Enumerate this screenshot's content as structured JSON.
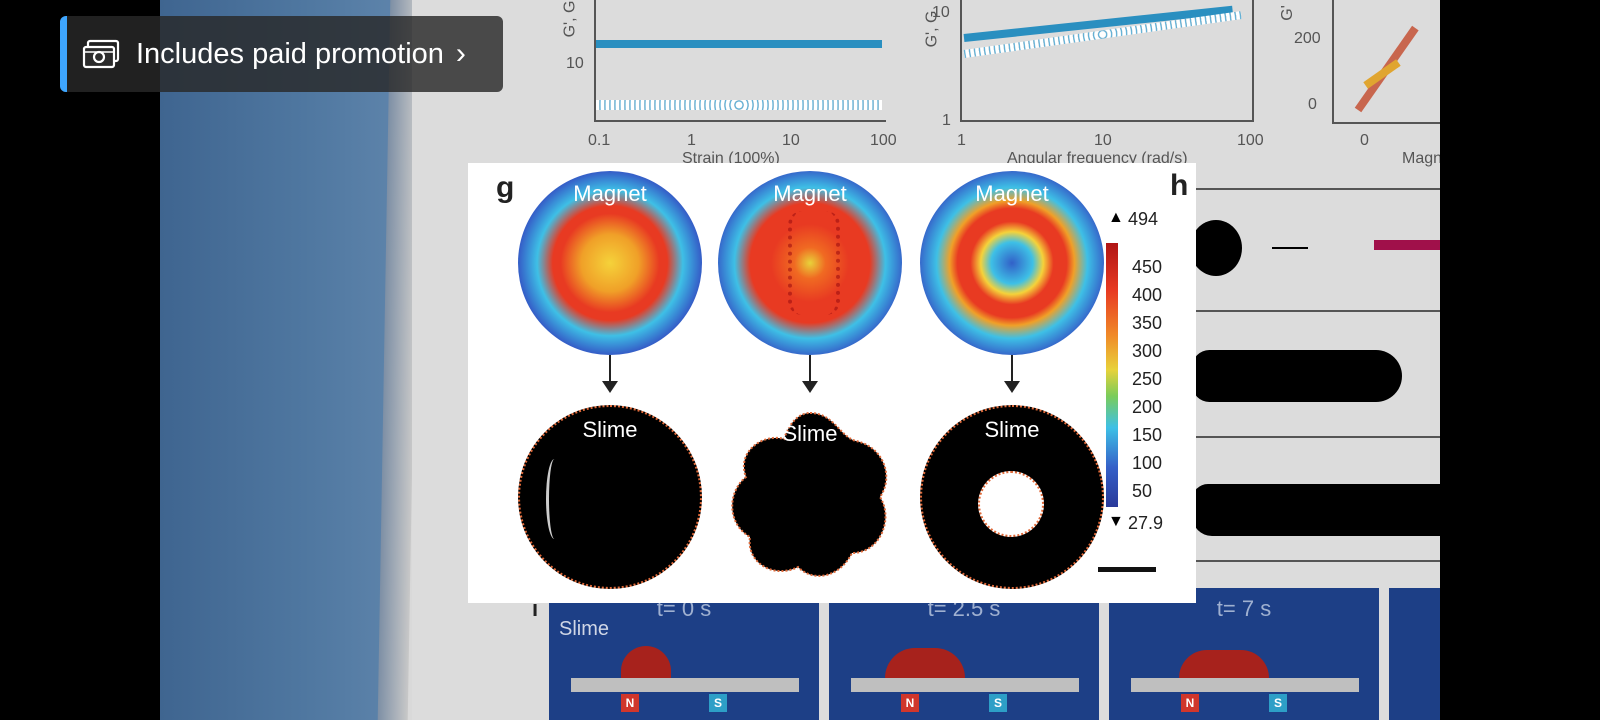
{
  "banner": {
    "label": "Includes paid promotion",
    "chevron": "›",
    "icon": "paid-promotion-icon",
    "accent": "#3ea6ff"
  },
  "background_figure": {
    "chart1_axis": {
      "y_prefix": "G', G",
      "y_tick": "10",
      "x_ticks": [
        "0.1",
        "1",
        "10",
        "100"
      ],
      "x_label": "Strain (100%)"
    },
    "chart2_axis": {
      "y_prefix": "G', G",
      "y_ticks": [
        "10",
        "1"
      ],
      "x_ticks": [
        "1",
        "10",
        "100"
      ],
      "x_label": "Angular frequency (rad/s)"
    },
    "chart3_axis": {
      "y_prefix": "G'",
      "y_ticks": [
        "200",
        "0"
      ],
      "x_ticks": [
        "0"
      ],
      "x_label": "Magn"
    },
    "panel_i_letter": "i",
    "sim_frames": [
      {
        "time": "t= 0 s",
        "label": "Slime"
      },
      {
        "time": "t= 2.5 s"
      },
      {
        "time": "t= 7 s"
      }
    ],
    "magnet_poles": {
      "n": "N",
      "s": "S"
    }
  },
  "popup": {
    "panel_g": "g",
    "panel_h": "h",
    "magnet_label": "Magnet",
    "slime_label": "Slime",
    "colorbar": {
      "max": "494",
      "min": "27.9",
      "ticks": [
        "450",
        "400",
        "350",
        "300",
        "250",
        "200",
        "150",
        "100",
        "50"
      ]
    }
  }
}
